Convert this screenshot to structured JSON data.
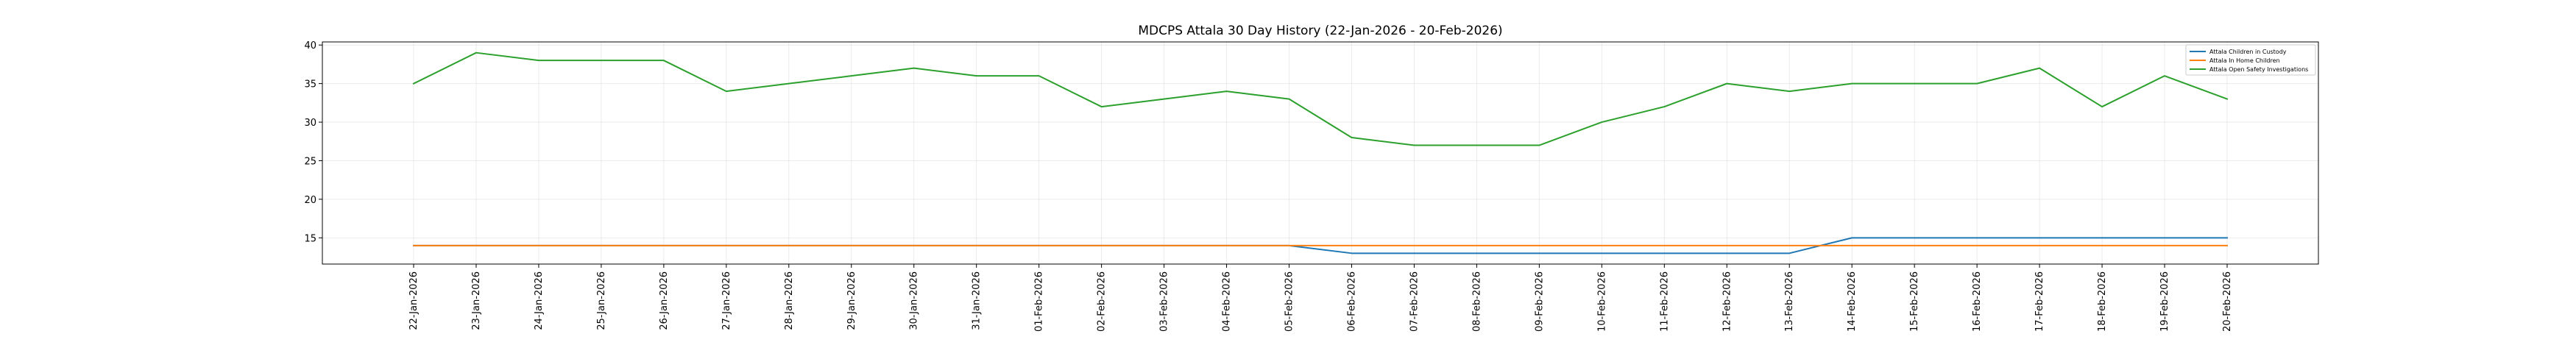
{
  "chart_data": {
    "type": "line",
    "title": "MDCPS Attala 30 Day History (22-Jan-2026 - 20-Feb-2026)",
    "xlabel": "",
    "ylabel": "",
    "grid": true,
    "legend_position": "top-right",
    "ylim": [
      11.6,
      40.4
    ],
    "y_ticks": [
      15,
      20,
      25,
      30,
      35,
      40
    ],
    "categories": [
      "22-Jan-2026",
      "23-Jan-2026",
      "24-Jan-2026",
      "25-Jan-2026",
      "26-Jan-2026",
      "27-Jan-2026",
      "28-Jan-2026",
      "29-Jan-2026",
      "30-Jan-2026",
      "31-Jan-2026",
      "01-Feb-2026",
      "02-Feb-2026",
      "03-Feb-2026",
      "04-Feb-2026",
      "05-Feb-2026",
      "06-Feb-2026",
      "07-Feb-2026",
      "08-Feb-2026",
      "09-Feb-2026",
      "10-Feb-2026",
      "11-Feb-2026",
      "12-Feb-2026",
      "13-Feb-2026",
      "14-Feb-2026",
      "15-Feb-2026",
      "16-Feb-2026",
      "17-Feb-2026",
      "18-Feb-2026",
      "19-Feb-2026",
      "20-Feb-2026"
    ],
    "series": [
      {
        "name": "Attala Children in Custody",
        "color": "#1f77b4",
        "values": [
          14,
          14,
          14,
          14,
          14,
          14,
          14,
          14,
          14,
          14,
          14,
          14,
          14,
          14,
          14,
          13,
          13,
          13,
          13,
          13,
          13,
          13,
          13,
          15,
          15,
          15,
          15,
          15,
          15,
          15
        ]
      },
      {
        "name": "Attala In Home Children",
        "color": "#ff7f0e",
        "values": [
          14,
          14,
          14,
          14,
          14,
          14,
          14,
          14,
          14,
          14,
          14,
          14,
          14,
          14,
          14,
          14,
          14,
          14,
          14,
          14,
          14,
          14,
          14,
          14,
          14,
          14,
          14,
          14,
          14,
          14
        ]
      },
      {
        "name": "Attala Open Safety Investigations",
        "color": "#2ca02c",
        "values": [
          35,
          39,
          38,
          38,
          38,
          34,
          35,
          36,
          37,
          36,
          36,
          32,
          33,
          34,
          33,
          28,
          27,
          27,
          27,
          30,
          32,
          35,
          34,
          35,
          35,
          35,
          37,
          32,
          36,
          33
        ]
      }
    ]
  }
}
